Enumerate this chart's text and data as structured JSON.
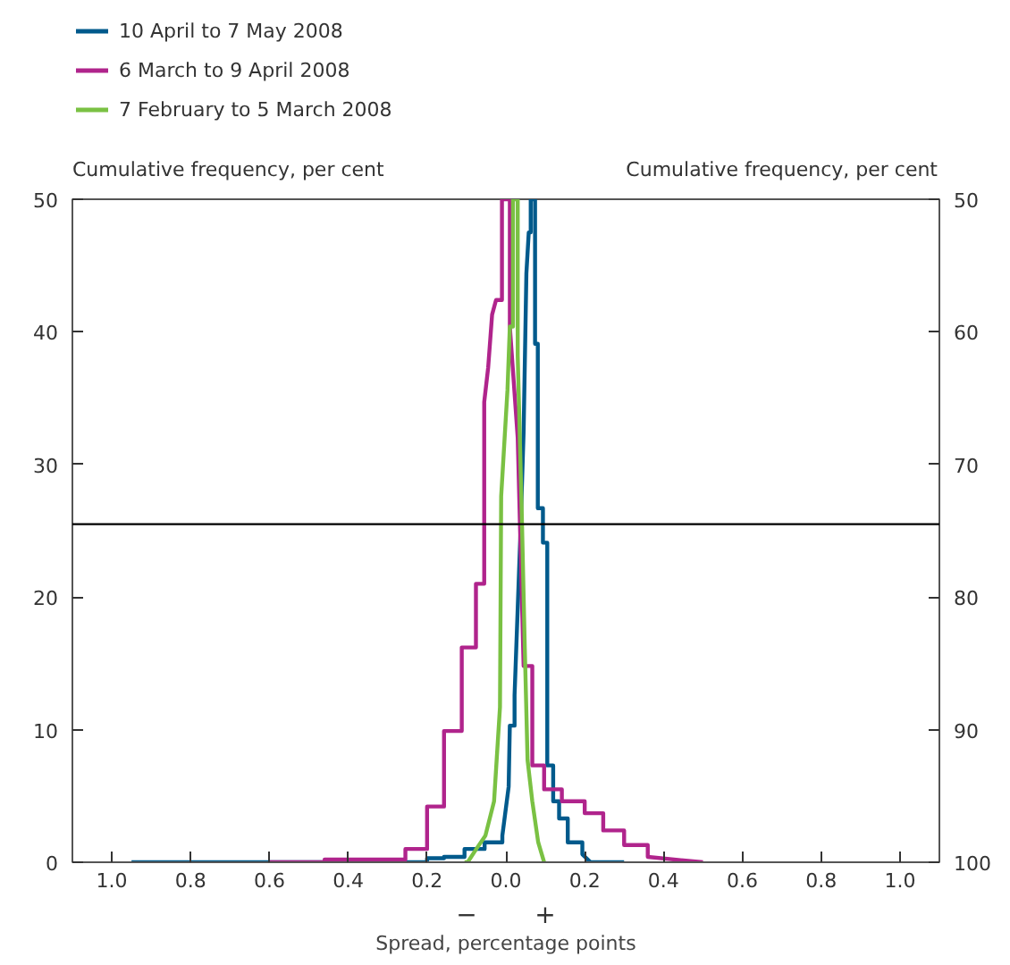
{
  "chart_data": {
    "type": "line",
    "xlabel": "Spread, percentage points",
    "ylabel": "Cumulative frequency, per cent",
    "y2label": "Cumulative frequency, per cent",
    "xlim": [
      -1.1,
      1.1
    ],
    "xticks": [
      {
        "value": -1.0,
        "label": "1.0"
      },
      {
        "value": -0.8,
        "label": "0.8"
      },
      {
        "value": -0.6,
        "label": "0.6"
      },
      {
        "value": -0.4,
        "label": "0.4"
      },
      {
        "value": -0.2,
        "label": "0.2"
      },
      {
        "value": 0,
        "label": "0.0"
      },
      {
        "value": 0.2,
        "label": "0.2"
      },
      {
        "value": 0.4,
        "label": "0.4"
      },
      {
        "value": 0.6,
        "label": "0.6"
      },
      {
        "value": 0.8,
        "label": "0.8"
      },
      {
        "value": 1.0,
        "label": "1.0"
      }
    ],
    "ylim": [
      0,
      50
    ],
    "yticks": [
      0,
      10,
      20,
      30,
      40,
      50
    ],
    "y2lim": [
      100,
      50
    ],
    "y2ticks": [
      50,
      60,
      70,
      80,
      90,
      100
    ],
    "grid": false,
    "legend": "top",
    "line_style": "solid",
    "marker": "none",
    "ref_lines": [
      {
        "axis": "y",
        "value": 25.5,
        "color": "#000000"
      }
    ],
    "annotations": [
      "−",
      "+"
    ],
    "series": [
      {
        "name": "10 April to 7 May 2008",
        "color": "#005a8c",
        "x": [
          -0.95,
          -0.2,
          -0.2,
          -0.157,
          -0.157,
          -0.105,
          -0.105,
          -0.054,
          -0.054,
          -0.009,
          -0.009,
          0.007,
          0.01,
          0.022,
          0.022,
          0.037,
          0.045,
          0.052,
          0.058,
          0.063,
          0.063,
          0.074,
          0.074,
          0.081,
          0.081,
          0.094,
          0.094,
          0.105,
          0.105,
          0.12,
          0.12,
          0.135,
          0.135,
          0.157,
          0.157,
          0.194,
          0.194,
          0.215,
          0.3
        ],
        "values": [
          0,
          0,
          0.3,
          0.3,
          0.4,
          0.4,
          1.0,
          1.0,
          1.5,
          1.5,
          2.0,
          5.7,
          10.3,
          10.3,
          12.6,
          24.9,
          32.5,
          44.4,
          47.5,
          47.5,
          50,
          50,
          39.1,
          39.1,
          26.7,
          26.7,
          24.1,
          24.1,
          7.3,
          7.3,
          4.6,
          4.6,
          3.3,
          3.3,
          1.5,
          1.5,
          0.6,
          0,
          0
        ]
      },
      {
        "name": "6 March to 9 April 2008",
        "color": "#b0248c",
        "x": [
          -0.6,
          -0.46,
          -0.46,
          -0.255,
          -0.255,
          -0.2,
          -0.2,
          -0.157,
          -0.157,
          -0.112,
          -0.112,
          -0.076,
          -0.076,
          -0.055,
          -0.055,
          -0.045,
          -0.035,
          -0.025,
          -0.01,
          -0.01,
          0.01,
          0.01,
          0.03,
          0.045,
          0.067,
          0.067,
          0.097,
          0.097,
          0.142,
          0.142,
          0.2,
          0.2,
          0.247,
          0.247,
          0.3,
          0.3,
          0.36,
          0.36,
          0.5
        ],
        "values": [
          0,
          0,
          0.2,
          0.2,
          1.0,
          1.0,
          4.2,
          4.2,
          9.9,
          9.9,
          16.2,
          16.2,
          21,
          21,
          34.7,
          37.3,
          41.3,
          42.4,
          42.4,
          50,
          50,
          40.4,
          32,
          14.8,
          14.8,
          7.3,
          7.3,
          5.5,
          5.5,
          4.6,
          4.6,
          3.7,
          3.7,
          2.4,
          2.4,
          1.3,
          1.3,
          0.4,
          0
        ]
      },
      {
        "name": "7 February to 5 March 2008",
        "color": "#7ac143",
        "x": [
          -0.105,
          -0.097,
          -0.075,
          -0.075,
          -0.052,
          -0.052,
          -0.03,
          -0.03,
          -0.015,
          -0.012,
          0.004,
          0.01,
          0.018,
          0.018,
          0.03,
          0.03,
          0.04,
          0.048,
          0.055,
          0.067,
          0.082,
          0.097
        ],
        "values": [
          0,
          0,
          1.0,
          1.0,
          2.0,
          2.0,
          4.6,
          4.6,
          11.7,
          27.6,
          35.6,
          40.4,
          40.4,
          50,
          50,
          38.2,
          26.7,
          16.1,
          7.7,
          4.6,
          1.5,
          0
        ]
      }
    ]
  }
}
